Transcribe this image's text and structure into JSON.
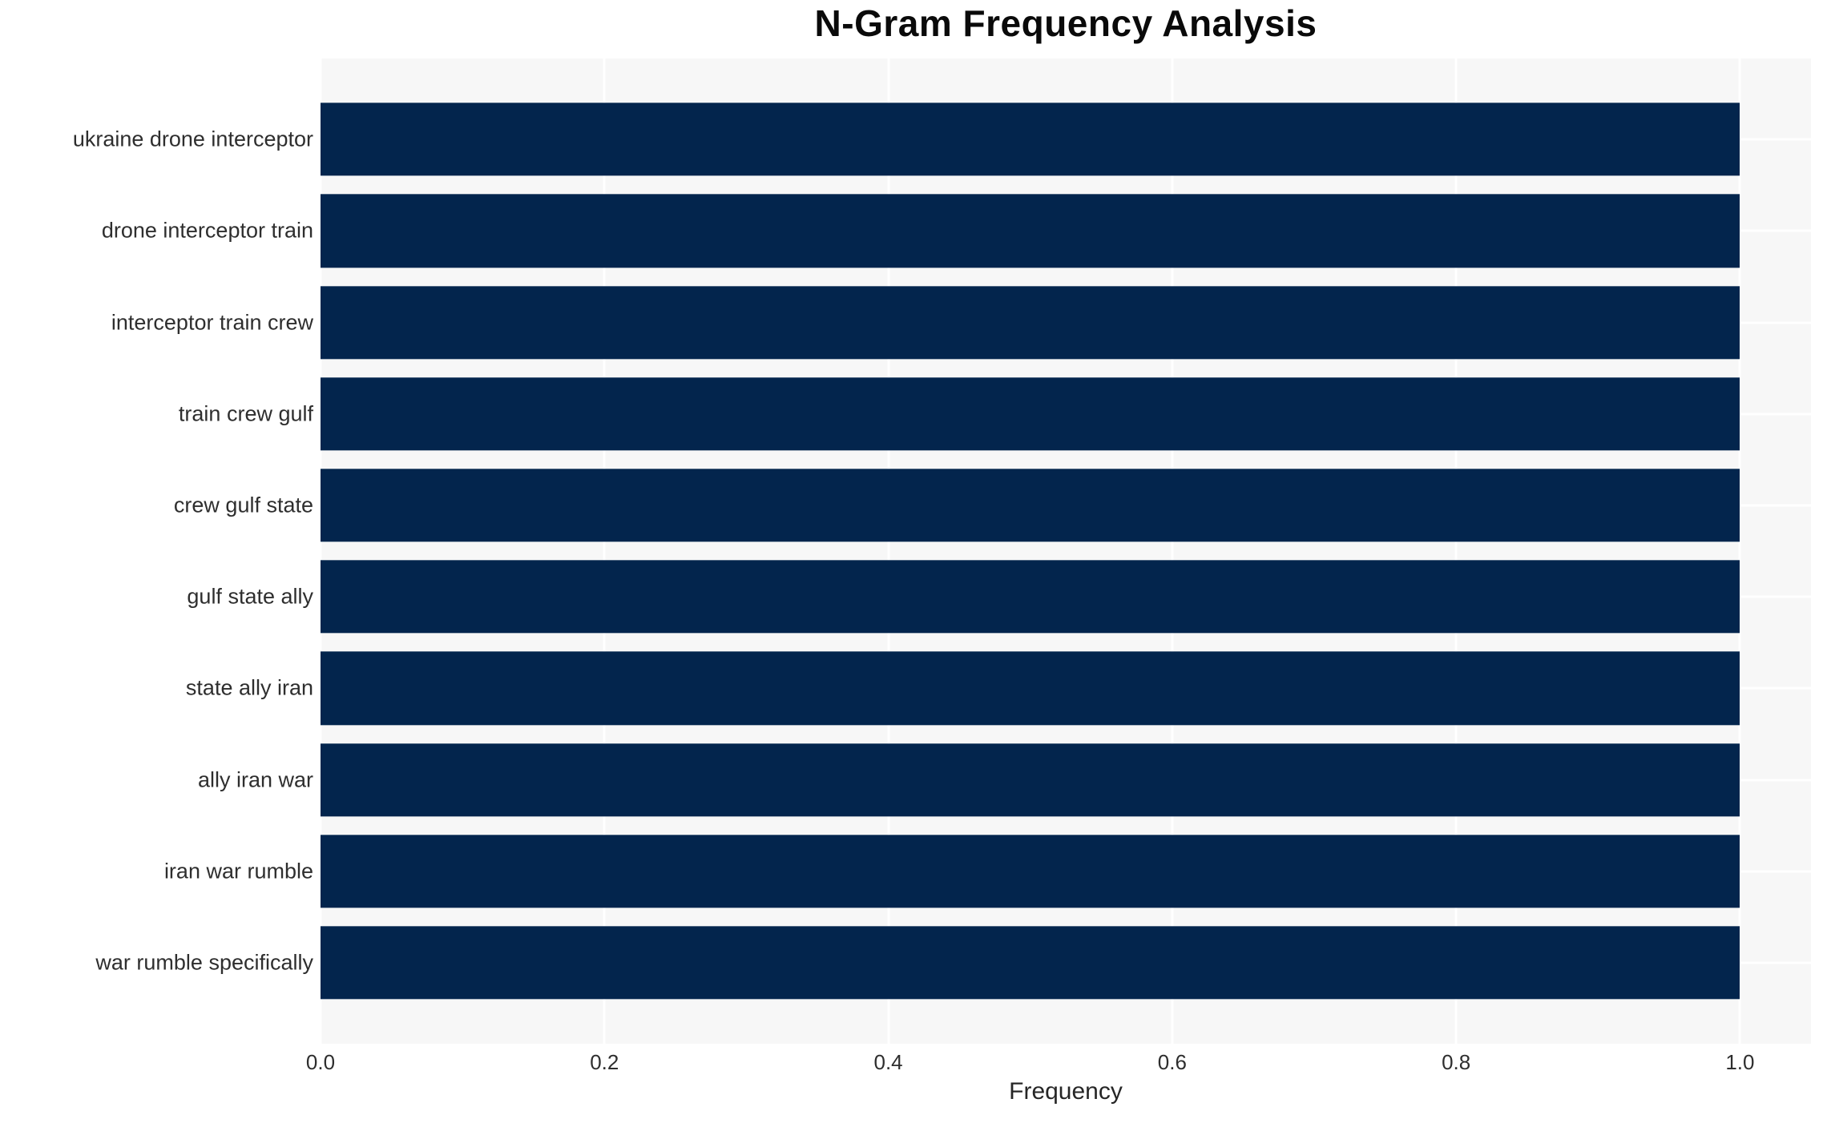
{
  "chart_data": {
    "type": "bar",
    "orientation": "horizontal",
    "title": "N-Gram Frequency Analysis",
    "xlabel": "Frequency",
    "ylabel": "",
    "categories": [
      "ukraine drone interceptor",
      "drone interceptor train",
      "interceptor train crew",
      "train crew gulf",
      "crew gulf state",
      "gulf state ally",
      "state ally iran",
      "ally iran war",
      "iran war rumble",
      "war rumble specifically"
    ],
    "values": [
      1.0,
      1.0,
      1.0,
      1.0,
      1.0,
      1.0,
      1.0,
      1.0,
      1.0,
      1.0
    ],
    "xticks": [
      0.0,
      0.2,
      0.4,
      0.6,
      0.8,
      1.0
    ],
    "xtick_labels": [
      "0.0",
      "0.2",
      "0.4",
      "0.6",
      "0.8",
      "1.0"
    ],
    "xlim": [
      0,
      1.05
    ],
    "grid": true,
    "legend": false,
    "colors": {
      "bar": "#03254d",
      "plot_background": "#f7f7f7",
      "gridline": "#ffffff",
      "tick_text": "#2e2e2e",
      "title_text": "#0a0a0a"
    }
  }
}
